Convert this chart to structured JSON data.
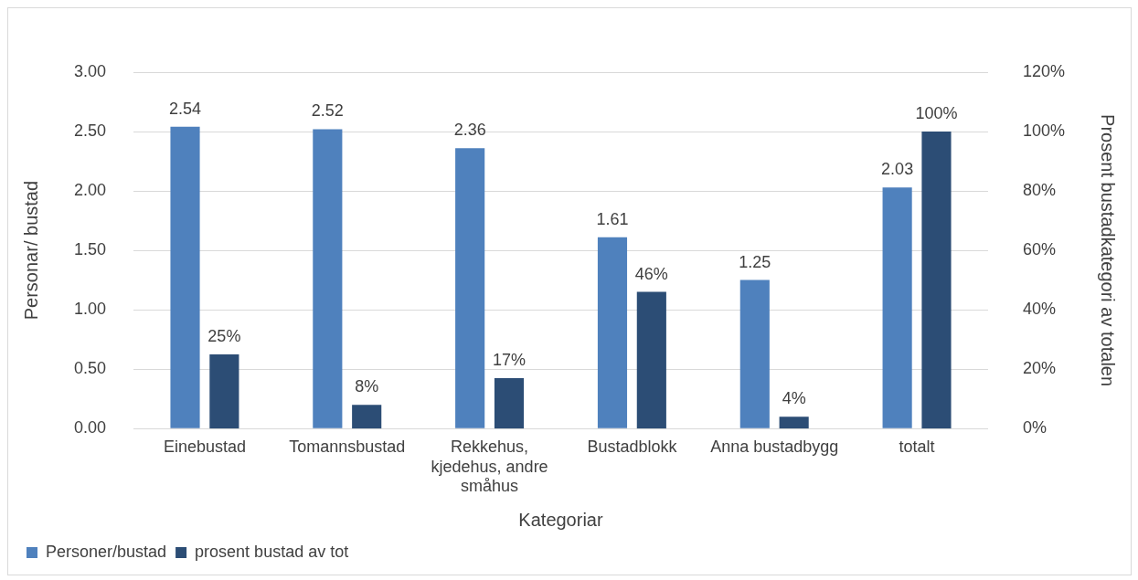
{
  "chart_data": {
    "type": "bar",
    "xlabel": "Kategoriar",
    "ylabel": "Personar/ bustad",
    "y2label": "Prosent bustadkategori av totalen",
    "categories": [
      "Einebustad",
      "Tomannsbustad",
      "Rekkehus, kjedehus, andre småhus",
      "Bustadblokk",
      "Anna bustadbygg",
      "totalt"
    ],
    "series": [
      {
        "name": "Personer/bustad",
        "color": "#4f81bd",
        "values": [
          2.54,
          2.52,
          2.36,
          1.61,
          1.25,
          2.03
        ],
        "value_labels": [
          "2.54",
          "2.52",
          "2.36",
          "1.61",
          "1.25",
          "2.03"
        ]
      },
      {
        "name": "prosent bustad av tot",
        "color": "#2c4d75",
        "axis": "y2",
        "values": [
          25,
          8,
          17,
          46,
          4,
          100
        ],
        "value_labels": [
          "25%",
          "8%",
          "17%",
          "46%",
          "4%",
          "100%"
        ]
      }
    ],
    "ylim": [
      0,
      3
    ],
    "yticks": [
      {
        "value": 0,
        "label": "0.00"
      },
      {
        "value": 0.5,
        "label": "0.50"
      },
      {
        "value": 1,
        "label": "1.00"
      },
      {
        "value": 1.5,
        "label": "1.50"
      },
      {
        "value": 2,
        "label": "2.00"
      },
      {
        "value": 2.5,
        "label": "2.50"
      },
      {
        "value": 3,
        "label": "3.00"
      }
    ],
    "y2lim": [
      0,
      120
    ],
    "y2ticks": [
      {
        "value": 0,
        "label": "0%"
      },
      {
        "value": 20,
        "label": "20%"
      },
      {
        "value": 40,
        "label": "40%"
      },
      {
        "value": 60,
        "label": "60%"
      },
      {
        "value": 80,
        "label": "80%"
      },
      {
        "value": 100,
        "label": "100%"
      },
      {
        "value": 120,
        "label": "120%"
      }
    ],
    "grid": "y",
    "legend": "bottom left"
  }
}
